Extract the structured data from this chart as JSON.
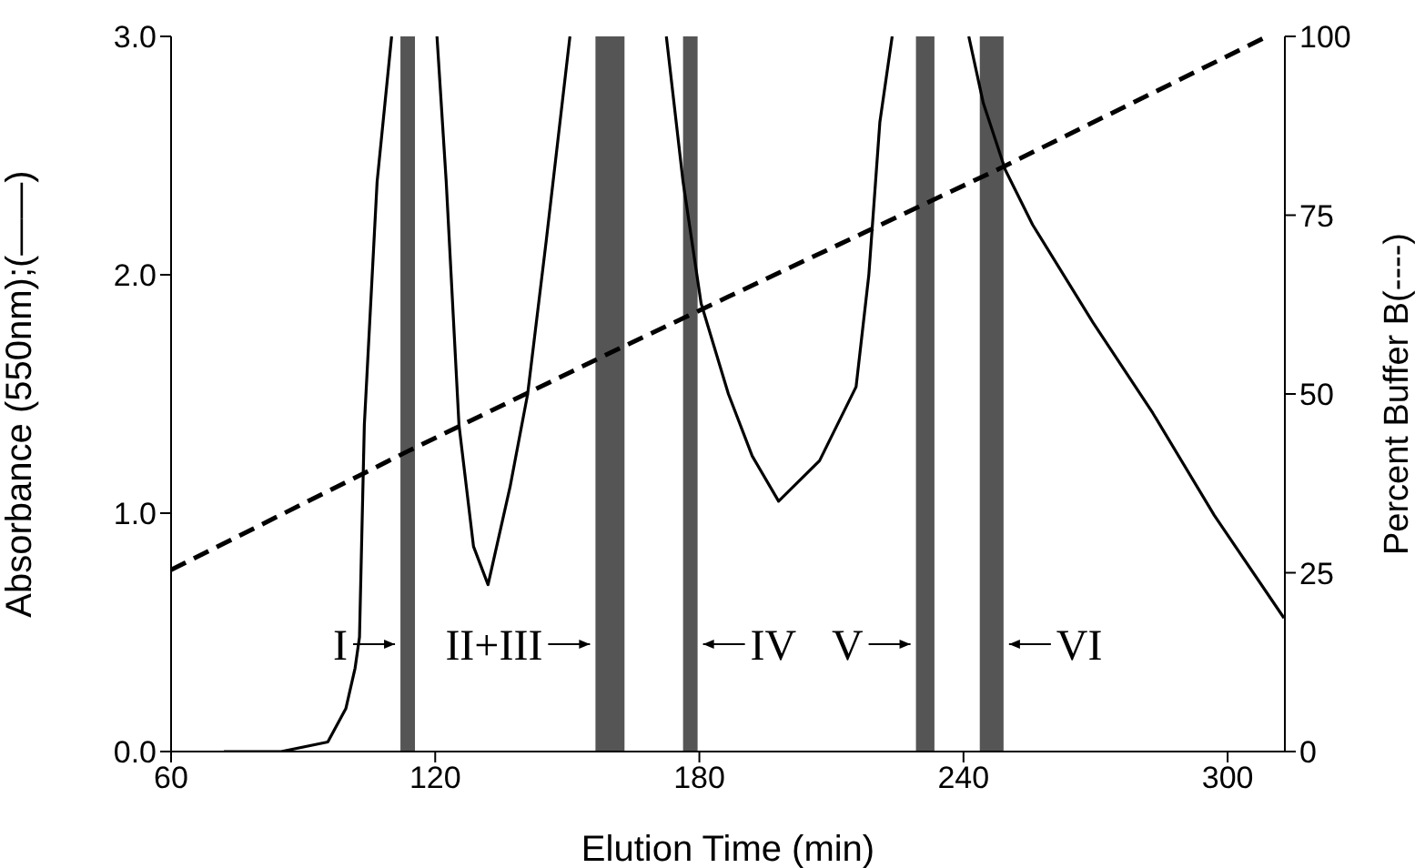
{
  "chart_data": {
    "type": "line",
    "xlabel": "Elution Time (min)",
    "ylabel": "Absorbance (550nm);(——)",
    "y2label": "Percent Buffer B(----)",
    "xlim": [
      60,
      313
    ],
    "xticks": [
      60,
      120,
      180,
      240,
      300
    ],
    "ylim": [
      0,
      3
    ],
    "yticks": [
      {
        "value": 0,
        "label": "0.0"
      },
      {
        "value": 1,
        "label": "1.0"
      },
      {
        "value": 2,
        "label": "2.0"
      },
      {
        "value": 3,
        "label": "3.0"
      }
    ],
    "y2lim": [
      0,
      100
    ],
    "y2ticks": [
      0,
      25,
      50,
      75,
      100
    ],
    "series": [
      {
        "color": "#000000",
        "line_style": "solid",
        "x": [
          72,
          85,
          95.6,
          99.7,
          101.8,
          102.8,
          103.9,
          106.8,
          110.1,
          115,
          120.4,
          122.5,
          125.4,
          128.7,
          132,
          137,
          141,
          145.2,
          150.6,
          160,
          172.5,
          176.3,
          180.4,
          186.6,
          192,
          198,
          207.3,
          215.6,
          218.5,
          221,
          223.8,
          230,
          241.2,
          244.5,
          249.5,
          255.7,
          269.4,
          283,
          297,
          312.8
        ],
        "values": [
          0,
          0,
          0.04,
          0.18,
          0.35,
          0.48,
          1.37,
          2.39,
          3,
          null,
          3,
          2.39,
          1.37,
          0.86,
          0.7,
          1.11,
          1.5,
          2.14,
          3,
          null,
          3,
          2.39,
          1.88,
          1.5,
          1.24,
          1.05,
          1.22,
          1.53,
          2,
          2.64,
          3,
          null,
          3,
          2.72,
          2.44,
          2.21,
          1.8,
          1.42,
          0.99,
          0.56
        ]
      },
      {
        "color": "#000000",
        "line_style": "dashed",
        "axis": "y2",
        "x": [
          60,
          113.8,
          158.9,
          186.6,
          247.8,
          309
        ],
        "values": [
          25.4,
          42,
          55.5,
          63.6,
          81.4,
          100
        ]
      }
    ],
    "bands": [
      {
        "axis": "x",
        "from": 112.1,
        "to": 115.4,
        "color": "#555555"
      },
      {
        "axis": "x",
        "from": 156.4,
        "to": 163,
        "color": "#555555"
      },
      {
        "axis": "x",
        "from": 176.3,
        "to": 179.6,
        "color": "#555555"
      },
      {
        "axis": "x",
        "from": 229.2,
        "to": 233.4,
        "color": "#555555"
      },
      {
        "axis": "x",
        "from": 243.7,
        "to": 249.1,
        "color": "#555555"
      }
    ],
    "annotations": [
      {
        "text": "I",
        "x": 112.1,
        "y": 0.45
      },
      {
        "text": "II+III",
        "x": 156.4,
        "y": 0.45
      },
      {
        "text": "IV",
        "x": 179.6,
        "y": 0.45
      },
      {
        "text": "V",
        "x": 229.2,
        "y": 0.45
      },
      {
        "text": "VI",
        "x": 249.1,
        "y": 0.45
      }
    ],
    "grid": false,
    "legend": false,
    "marker": "none"
  }
}
